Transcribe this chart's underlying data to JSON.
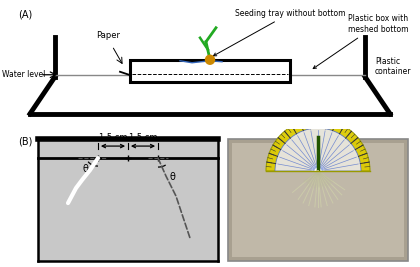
{
  "bg_color": "#ffffff",
  "panel_A_label": "(A)",
  "panel_B_label": "(B)",
  "gray_fill": "#c8c8c8",
  "photo_bg": "#b0b0b0",
  "plant_green": "#22aa22",
  "plant_yellow": "#cc8800",
  "plant_root_blue": "#3366bb",
  "theta_label": "θ",
  "dim_label_left": "1.5 cm",
  "dim_label_right": "1.5 cm",
  "proto_yellow": "#ddcc00",
  "proto_blue": "#4466cc",
  "proto_inner": "#e8e8ff"
}
